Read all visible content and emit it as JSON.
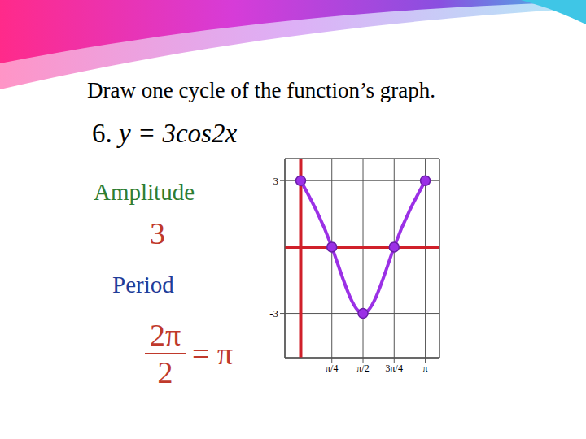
{
  "slide": {
    "instruction": "Draw one cycle of the function’s graph.",
    "problem_number": "6.",
    "problem": "y = 3cos2x",
    "amplitude_label": "Amplitude",
    "amplitude_value": "3",
    "period_label": "Period",
    "period_numerator": "2π",
    "period_denominator": "2",
    "period_result": "= π"
  },
  "chart_data": {
    "type": "line",
    "x": [
      0,
      0.785,
      1.571,
      2.356,
      3.142
    ],
    "values": [
      3,
      0,
      -3,
      0,
      3
    ],
    "color": "#9b30e6",
    "marker": "circle",
    "xlim": [
      -0.4,
      3.5
    ],
    "ylim": [
      -5,
      4
    ],
    "xticks": [
      {
        "value": 0.785,
        "label": "π/4"
      },
      {
        "value": 1.571,
        "label": "π/2"
      },
      {
        "value": 2.356,
        "label": "3π/4"
      },
      {
        "value": 3.142,
        "label": "π"
      }
    ],
    "yticks": [
      -3,
      3
    ],
    "grid": true
  }
}
